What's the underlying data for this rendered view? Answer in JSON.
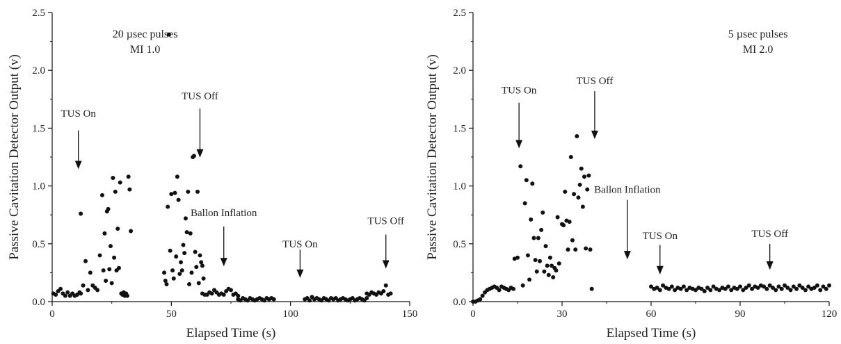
{
  "charts": [
    {
      "type": "scatter",
      "xlabel": "Elapsed Time (s)",
      "ylabel": "Passive Cavitation Detector Output (v)",
      "xlim": [
        0,
        150
      ],
      "ylim": [
        0,
        2.5
      ],
      "xticks": [
        0,
        50,
        100,
        150
      ],
      "xtick_labels": [
        "0",
        "50",
        "100",
        "150"
      ],
      "yticks": [
        0,
        0.5,
        1.0,
        1.5,
        2.0,
        2.5
      ],
      "ytick_labels": [
        "0.0",
        "0.5",
        "1.0",
        "1.5",
        "2.0",
        "2.5"
      ],
      "text_boxes": [
        {
          "id": "pulse",
          "lines": [
            "20 µsec pulses",
            "MI 1.0"
          ],
          "x": 39,
          "y": 2.32
        }
      ],
      "annotations": [
        {
          "label": "TUS On",
          "x": 11,
          "y_text": 1.6,
          "y_start": 1.48,
          "y_end": 1.08
        },
        {
          "label": "TUS Off",
          "x": 62,
          "y_text": 1.75,
          "y_start": 1.67,
          "y_end": 1.18
        },
        {
          "label": "Ballon Inflation",
          "x": 72,
          "y_text": 0.74,
          "y_start": 0.65,
          "y_end": 0.24
        },
        {
          "label": "TUS On",
          "x": 104,
          "y_text": 0.47,
          "y_start": 0.45,
          "y_end": 0.14
        },
        {
          "label": "TUS Off",
          "x": 140,
          "y_text": 0.67,
          "y_start": 0.58,
          "y_end": 0.22
        }
      ],
      "points": [
        [
          0.5,
          0.07
        ],
        [
          1.5,
          0.06
        ],
        [
          2.5,
          0.09
        ],
        [
          3.5,
          0.11
        ],
        [
          4.5,
          0.07
        ],
        [
          5.5,
          0.05
        ],
        [
          6.5,
          0.08
        ],
        [
          7.5,
          0.05
        ],
        [
          8.5,
          0.07
        ],
        [
          9.5,
          0.05
        ],
        [
          10.5,
          0.06
        ],
        [
          11.5,
          0.08
        ],
        [
          12,
          0.07
        ],
        [
          12,
          0.76
        ],
        [
          13,
          0.14
        ],
        [
          14,
          0.35
        ],
        [
          15,
          0.1
        ],
        [
          16,
          0.25
        ],
        [
          17,
          0.14
        ],
        [
          18,
          0.12
        ],
        [
          19,
          0.1
        ],
        [
          20,
          0.4
        ],
        [
          21,
          0.92
        ],
        [
          21.5,
          0.27
        ],
        [
          22,
          0.59
        ],
        [
          22.5,
          0.18
        ],
        [
          23,
          0.78
        ],
        [
          23.5,
          0.8
        ],
        [
          24,
          0.28
        ],
        [
          24.5,
          0.48
        ],
        [
          25,
          0.16
        ],
        [
          25.5,
          1.07
        ],
        [
          26,
          0.38
        ],
        [
          26.5,
          0.95
        ],
        [
          27,
          0.27
        ],
        [
          27.5,
          0.63
        ],
        [
          28,
          0.29
        ],
        [
          28.5,
          1.03
        ],
        [
          29,
          0.07
        ],
        [
          29.5,
          0.06
        ],
        [
          30,
          0.08
        ],
        [
          30.5,
          0.05
        ],
        [
          31,
          0.07
        ],
        [
          31.5,
          0.05
        ],
        [
          32,
          1.08
        ],
        [
          32.5,
          0.97
        ],
        [
          33,
          0.61
        ],
        [
          47,
          0.25
        ],
        [
          47.5,
          0.18
        ],
        [
          48,
          0.15
        ],
        [
          48.5,
          0.82
        ],
        [
          49,
          2.31
        ],
        [
          49.5,
          0.44
        ],
        [
          50,
          0.93
        ],
        [
          50.5,
          0.27
        ],
        [
          51,
          0.2
        ],
        [
          51.5,
          0.94
        ],
        [
          52,
          0.39
        ],
        [
          52.5,
          1.08
        ],
        [
          53,
          0.88
        ],
        [
          53.5,
          0.24
        ],
        [
          54,
          0.34
        ],
        [
          54.5,
          0.27
        ],
        [
          55,
          0.49
        ],
        [
          55.5,
          0.42
        ],
        [
          56,
          0.72
        ],
        [
          56.5,
          0.6
        ],
        [
          57,
          0.95
        ],
        [
          57.5,
          0.15
        ],
        [
          58,
          0.59
        ],
        [
          58.5,
          0.25
        ],
        [
          59,
          1.25
        ],
        [
          59.5,
          1.26
        ],
        [
          60,
          0.43
        ],
        [
          60.5,
          0.3
        ],
        [
          61,
          0.95
        ],
        [
          61.5,
          0.16
        ],
        [
          62,
          0.4
        ],
        [
          62.5,
          0.34
        ],
        [
          63,
          0.31
        ],
        [
          63.5,
          0.2
        ],
        [
          63,
          0.07
        ],
        [
          64,
          0.06
        ],
        [
          65,
          0.06
        ],
        [
          66,
          0.08
        ],
        [
          67,
          0.07
        ],
        [
          68,
          0.1
        ],
        [
          69,
          0.08
        ],
        [
          70,
          0.06
        ],
        [
          71,
          0.07
        ],
        [
          72,
          0.06
        ],
        [
          73,
          0.09
        ],
        [
          74,
          0.11
        ],
        [
          75,
          0.1
        ],
        [
          76,
          0.06
        ],
        [
          77,
          0.07
        ],
        [
          78,
          0.05
        ],
        [
          78,
          0.02
        ],
        [
          79,
          0.01
        ],
        [
          80,
          0.03
        ],
        [
          81,
          0.02
        ],
        [
          82,
          0.01
        ],
        [
          83,
          0.03
        ],
        [
          84,
          0.02
        ],
        [
          85,
          0.01
        ],
        [
          86,
          0.02
        ],
        [
          87,
          0.03
        ],
        [
          88,
          0.02
        ],
        [
          89,
          0.01
        ],
        [
          90,
          0.03
        ],
        [
          91,
          0.02
        ],
        [
          92,
          0.03
        ],
        [
          93,
          0.02
        ],
        [
          106,
          0.02
        ],
        [
          107,
          0.03
        ],
        [
          108,
          0.01
        ],
        [
          109,
          0.04
        ],
        [
          110,
          0.02
        ],
        [
          111,
          0.03
        ],
        [
          112,
          0.02
        ],
        [
          113,
          0.01
        ],
        [
          114,
          0.03
        ],
        [
          115,
          0.02
        ],
        [
          116,
          0.01
        ],
        [
          117,
          0.03
        ],
        [
          118,
          0.02
        ],
        [
          119,
          0.03
        ],
        [
          120,
          0.01
        ],
        [
          121,
          0.02
        ],
        [
          122,
          0.03
        ],
        [
          123,
          0.02
        ],
        [
          124,
          0.01
        ],
        [
          125,
          0.02
        ],
        [
          126,
          0.03
        ],
        [
          127,
          0.01
        ],
        [
          128,
          0.02
        ],
        [
          129,
          0.03
        ],
        [
          130,
          0.02
        ],
        [
          131,
          0.01
        ],
        [
          132,
          0.03
        ],
        [
          132,
          0.07
        ],
        [
          133,
          0.06
        ],
        [
          134,
          0.08
        ],
        [
          135,
          0.07
        ],
        [
          136,
          0.06
        ],
        [
          137,
          0.08
        ],
        [
          138,
          0.07
        ],
        [
          139,
          0.09
        ],
        [
          140,
          0.14
        ],
        [
          141,
          0.06
        ],
        [
          142,
          0.07
        ]
      ]
    },
    {
      "type": "scatter",
      "xlabel": "Elapsed Time (s)",
      "ylabel": "Passive Cavitation Detector Output (v)",
      "xlim": [
        0,
        120
      ],
      "ylim": [
        0,
        2.5
      ],
      "xticks": [
        0,
        30,
        60,
        90,
        120
      ],
      "xtick_labels": [
        "0",
        "30",
        "60",
        "90",
        "120"
      ],
      "yticks": [
        0,
        0.5,
        1.0,
        1.5,
        2.0,
        2.5
      ],
      "ytick_labels": [
        "0.0",
        "0.5",
        "1.0",
        "1.5",
        "2.0",
        "2.5"
      ],
      "text_boxes": [
        {
          "id": "pulse",
          "lines": [
            "5 µsec pulses",
            "MI 2.0"
          ],
          "x": 96,
          "y": 2.32
        }
      ],
      "annotations": [
        {
          "label": "TUS On",
          "x": 15.5,
          "y_text": 1.8,
          "y_start": 1.72,
          "y_end": 1.26
        },
        {
          "label": "TUS Off",
          "x": 41,
          "y_text": 1.88,
          "y_start": 1.82,
          "y_end": 1.34
        },
        {
          "label": "Ballon Inflation",
          "x": 52,
          "y_text": 0.94,
          "y_start": 0.88,
          "y_end": 0.3
        },
        {
          "label": "TUS On",
          "x": 63,
          "y_text": 0.54,
          "y_start": 0.49,
          "y_end": 0.17
        },
        {
          "label": "TUS Off",
          "x": 100,
          "y_text": 0.56,
          "y_start": 0.5,
          "y_end": 0.21
        }
      ],
      "points": [
        [
          0,
          0.0
        ],
        [
          0.8,
          0.0
        ],
        [
          1.6,
          0.01
        ],
        [
          2.4,
          0.02
        ],
        [
          3.2,
          0.05
        ],
        [
          4,
          0.08
        ],
        [
          4.8,
          0.1
        ],
        [
          5.6,
          0.11
        ],
        [
          6.4,
          0.12
        ],
        [
          7.2,
          0.13
        ],
        [
          8,
          0.12
        ],
        [
          8.8,
          0.1
        ],
        [
          9.6,
          0.13
        ],
        [
          10.4,
          0.12
        ],
        [
          11.2,
          0.11
        ],
        [
          12,
          0.1
        ],
        [
          12.8,
          0.12
        ],
        [
          13.6,
          0.11
        ],
        [
          14,
          0.37
        ],
        [
          15,
          0.38
        ],
        [
          16,
          1.17
        ],
        [
          16.8,
          0.14
        ],
        [
          17.5,
          0.85
        ],
        [
          18,
          1.05
        ],
        [
          18.5,
          0.4
        ],
        [
          19,
          0.19
        ],
        [
          19.5,
          0.71
        ],
        [
          20,
          1.02
        ],
        [
          20.5,
          0.55
        ],
        [
          21,
          0.36
        ],
        [
          21.5,
          0.26
        ],
        [
          22,
          0.55
        ],
        [
          22.5,
          0.35
        ],
        [
          23,
          0.62
        ],
        [
          23.5,
          0.77
        ],
        [
          24,
          0.26
        ],
        [
          24.5,
          0.48
        ],
        [
          25,
          0.31
        ],
        [
          25.5,
          0.23
        ],
        [
          26,
          0.38
        ],
        [
          26.5,
          0.31
        ],
        [
          27,
          0.21
        ],
        [
          27.5,
          0.29
        ],
        [
          28,
          0.27
        ],
        [
          28.5,
          0.73
        ],
        [
          29,
          0.33
        ],
        [
          30,
          0.67
        ],
        [
          30.5,
          0.66
        ],
        [
          31,
          0.95
        ],
        [
          31.5,
          0.7
        ],
        [
          32,
          0.45
        ],
        [
          32.5,
          0.69
        ],
        [
          33,
          1.25
        ],
        [
          33.5,
          0.53
        ],
        [
          34,
          0.93
        ],
        [
          34.5,
          0.45
        ],
        [
          35,
          1.43
        ],
        [
          35.5,
          0.9
        ],
        [
          36,
          1.01
        ],
        [
          36.5,
          1.15
        ],
        [
          37,
          0.82
        ],
        [
          37.5,
          1.08
        ],
        [
          38,
          0.46
        ],
        [
          38.5,
          0.97
        ],
        [
          39,
          1.09
        ],
        [
          39.5,
          0.45
        ],
        [
          40,
          0.11
        ],
        [
          60,
          0.13
        ],
        [
          61,
          0.11
        ],
        [
          62,
          0.12
        ],
        [
          63,
          0.1
        ],
        [
          64,
          0.14
        ],
        [
          65,
          0.12
        ],
        [
          66,
          0.11
        ],
        [
          67,
          0.13
        ],
        [
          68,
          0.1
        ],
        [
          69,
          0.12
        ],
        [
          70,
          0.11
        ],
        [
          71,
          0.13
        ],
        [
          72,
          0.1
        ],
        [
          73,
          0.12
        ],
        [
          74,
          0.11
        ],
        [
          75,
          0.1
        ],
        [
          76,
          0.12
        ],
        [
          77,
          0.11
        ],
        [
          78,
          0.09
        ],
        [
          79,
          0.12
        ],
        [
          80,
          0.1
        ],
        [
          81,
          0.13
        ],
        [
          82,
          0.11
        ],
        [
          83,
          0.1
        ],
        [
          84,
          0.12
        ],
        [
          85,
          0.11
        ],
        [
          86,
          0.13
        ],
        [
          87,
          0.1
        ],
        [
          88,
          0.12
        ],
        [
          89,
          0.11
        ],
        [
          90,
          0.13
        ],
        [
          91,
          0.1
        ],
        [
          92,
          0.12
        ],
        [
          93,
          0.14
        ],
        [
          94,
          0.11
        ],
        [
          95,
          0.13
        ],
        [
          96,
          0.12
        ],
        [
          97,
          0.14
        ],
        [
          98,
          0.13
        ],
        [
          99,
          0.11
        ],
        [
          100,
          0.14
        ],
        [
          101,
          0.12
        ],
        [
          102,
          0.1
        ],
        [
          103,
          0.13
        ],
        [
          104,
          0.11
        ],
        [
          105,
          0.14
        ],
        [
          106,
          0.12
        ],
        [
          107,
          0.1
        ],
        [
          108,
          0.13
        ],
        [
          109,
          0.11
        ],
        [
          110,
          0.14
        ],
        [
          111,
          0.12
        ],
        [
          112,
          0.1
        ],
        [
          113,
          0.13
        ],
        [
          114,
          0.11
        ],
        [
          115,
          0.12
        ],
        [
          116,
          0.14
        ],
        [
          117,
          0.1
        ],
        [
          118,
          0.13
        ],
        [
          119,
          0.11
        ],
        [
          120,
          0.14
        ]
      ]
    }
  ]
}
